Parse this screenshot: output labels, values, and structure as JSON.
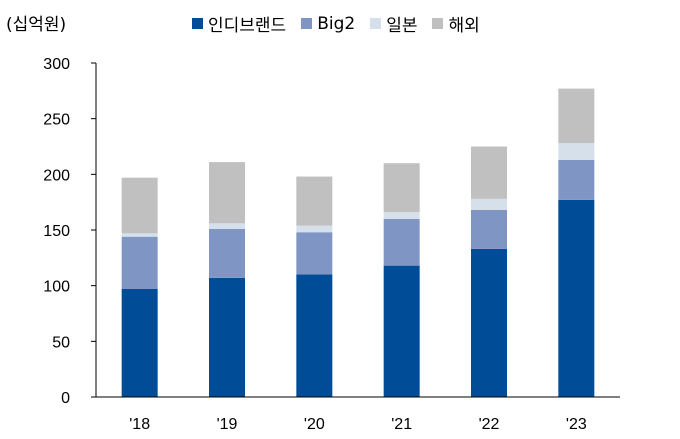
{
  "chart_data": {
    "type": "bar",
    "stacked": true,
    "unit_label": "(십억원)",
    "categories": [
      "'18",
      "'19",
      "'20",
      "'21",
      "'22",
      "'23"
    ],
    "series": [
      {
        "name": "인디브랜드",
        "color": "#004c97",
        "values": [
          97,
          107,
          110,
          118,
          133,
          177
        ]
      },
      {
        "name": "Big2",
        "color": "#7f96c4",
        "values": [
          47,
          44,
          38,
          42,
          35,
          36
        ]
      },
      {
        "name": "일본",
        "color": "#d6e0ea",
        "values": [
          3,
          5,
          6,
          6,
          10,
          15
        ]
      },
      {
        "name": "해외",
        "color": "#c0c0c0",
        "values": [
          50,
          55,
          44,
          44,
          47,
          49
        ]
      }
    ],
    "ylim": [
      0,
      300
    ],
    "yticks": [
      0,
      50,
      100,
      150,
      200,
      250,
      300
    ],
    "grid": false,
    "legend_position": "top"
  }
}
